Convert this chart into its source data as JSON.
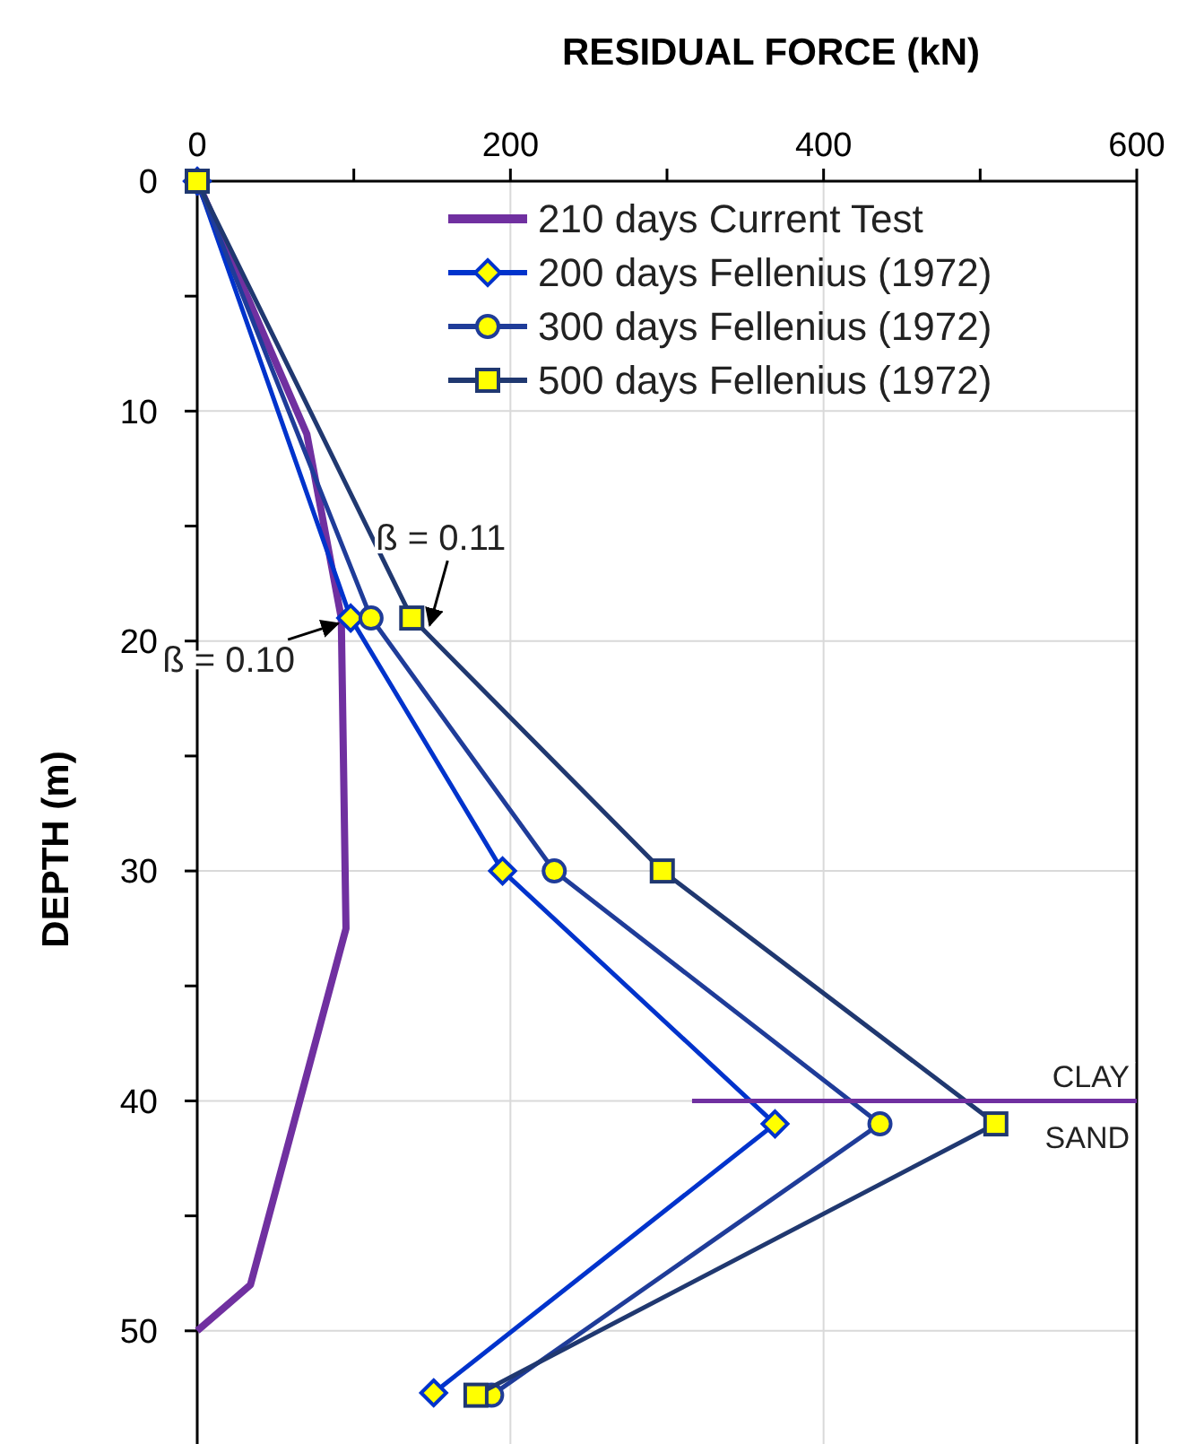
{
  "chart_data": {
    "type": "line",
    "xlabel": "RESIDUAL FORCE (kN)",
    "ylabel": "DEPTH (m)",
    "xlim": [
      0,
      600
    ],
    "xticks": [
      0,
      {
        "value": 100,
        "label": null
      },
      200,
      {
        "value": 300,
        "label": null
      },
      400,
      {
        "value": 500,
        "label": null
      },
      600
    ],
    "ylim": [
      55,
      0
    ],
    "yticks": [
      0,
      {
        "value": 5,
        "label": null
      },
      10,
      {
        "value": 15,
        "label": null
      },
      20,
      {
        "value": 25,
        "label": null
      },
      30,
      {
        "value": 35,
        "label": null
      },
      40,
      {
        "value": 45,
        "label": null
      },
      50
    ],
    "grid": true,
    "legend": "top right",
    "line_style": "solid",
    "series": [
      {
        "name": "210 days Current Test",
        "color": "#7030a0",
        "marker": "none",
        "x": [
          0,
          70,
          92,
          95,
          34,
          0
        ],
        "values": [
          0,
          11,
          19,
          32.5,
          48,
          50
        ]
      },
      {
        "name": "200 days Fellenius (1972)",
        "color": "#0033cc",
        "marker": "diamond",
        "x": [
          0,
          98,
          195,
          369,
          151
        ],
        "values": [
          0,
          19,
          30,
          41,
          52.7
        ]
      },
      {
        "name": "300 days Fellenius (1972)",
        "color": "#1f3c99",
        "marker": "circle",
        "x": [
          0,
          111,
          228,
          436,
          188
        ],
        "values": [
          0,
          19,
          30,
          41,
          52.8
        ]
      },
      {
        "name": "500 days Fellenius (1972)",
        "color": "#203870",
        "marker": "square",
        "x": [
          0,
          137,
          297,
          510,
          178
        ],
        "values": [
          0,
          19,
          30,
          41,
          52.8
        ]
      },
      {
        "type": "line",
        "color": "#7030a0",
        "marker": "none",
        "x": [
          316,
          600
        ],
        "values": [
          40,
          40
        ]
      }
    ],
    "annotations": [
      {
        "text": "ß = 0.11",
        "x": 137,
        "y": 19
      },
      {
        "text": "ß = 0.10",
        "x": 98,
        "y": 19
      },
      "CLAY",
      "SAND"
    ]
  }
}
